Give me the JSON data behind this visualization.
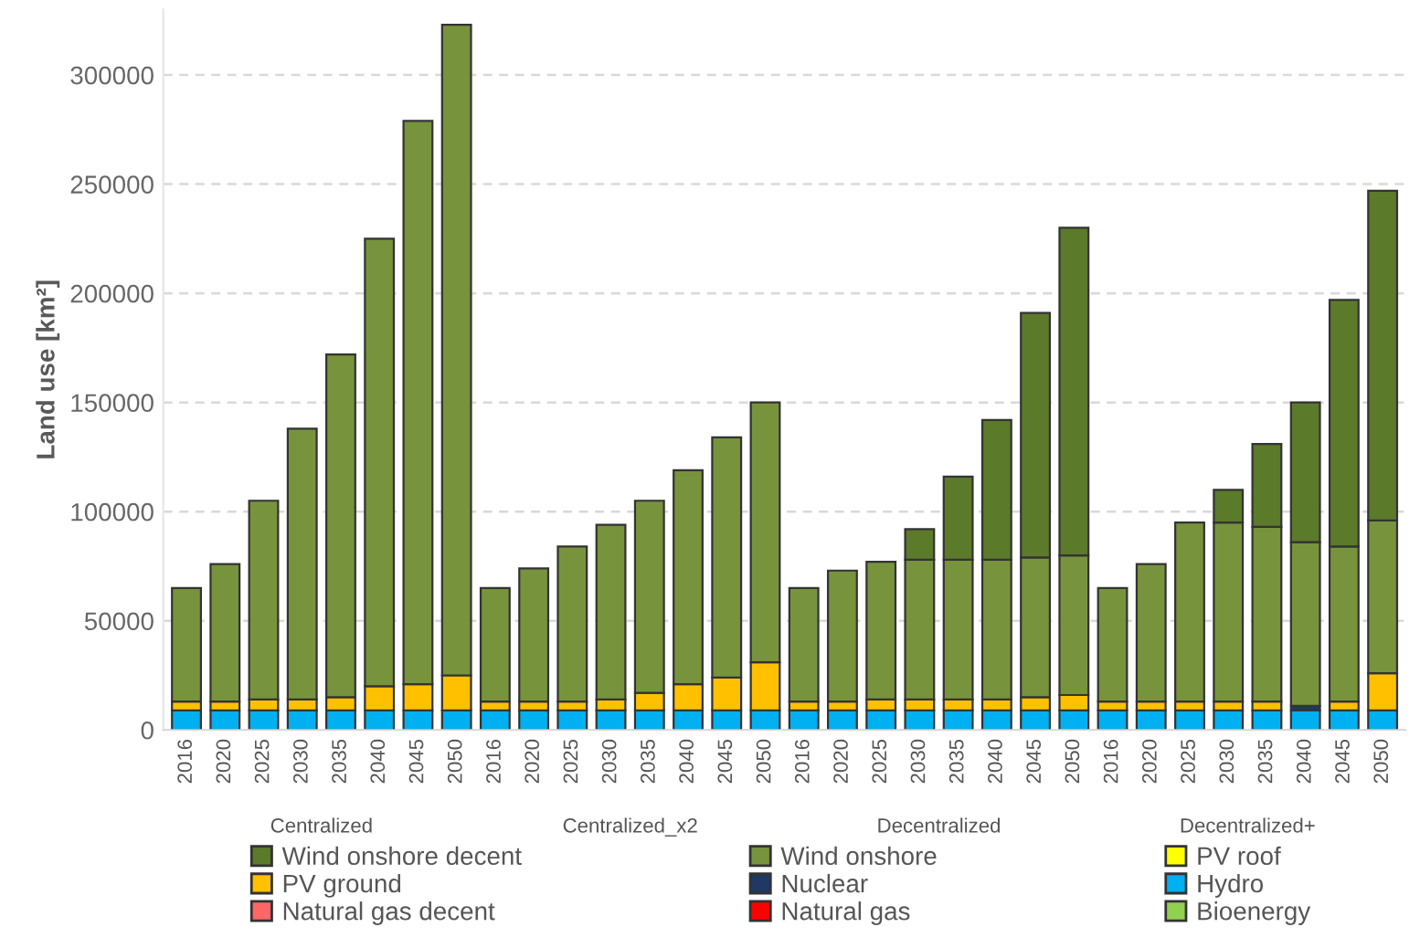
{
  "chart_data": {
    "type": "bar",
    "stacked": true,
    "ylabel": "Land use [km²]",
    "categories": [
      "2016",
      "2020",
      "2025",
      "2030",
      "2035",
      "2040",
      "2045",
      "2050",
      "2016",
      "2020",
      "2025",
      "2030",
      "2035",
      "2040",
      "2045",
      "2050",
      "2016",
      "2020",
      "2025",
      "2030",
      "2035",
      "2040",
      "2045",
      "2050",
      "2016",
      "2020",
      "2025",
      "2030",
      "2035",
      "2040",
      "2045",
      "2050"
    ],
    "annotations": [
      "Centralized",
      "Centralized_x2",
      "Decentralized",
      "Decentralized+"
    ],
    "ylim": [
      0,
      330000
    ],
    "yticks": [
      0,
      50000,
      100000,
      150000,
      200000,
      250000,
      300000
    ],
    "grid": "y",
    "legend": "bottom",
    "series": [
      {
        "name": "Bioenergy",
        "color": "#92d050",
        "values": [
          0,
          0,
          0,
          0,
          0,
          0,
          0,
          0,
          0,
          0,
          0,
          0,
          0,
          0,
          0,
          0,
          0,
          0,
          0,
          0,
          0,
          0,
          0,
          0,
          0,
          0,
          0,
          0,
          0,
          0,
          0,
          0
        ]
      },
      {
        "name": "Natural gas",
        "color": "#ff0000",
        "values": [
          0,
          0,
          0,
          0,
          0,
          0,
          0,
          0,
          0,
          0,
          0,
          0,
          0,
          0,
          0,
          0,
          0,
          0,
          0,
          0,
          0,
          0,
          0,
          0,
          0,
          0,
          0,
          0,
          0,
          0,
          0,
          0
        ]
      },
      {
        "name": "Natural gas decent",
        "color": "#ff6666",
        "values": [
          0,
          0,
          0,
          0,
          0,
          0,
          0,
          0,
          0,
          0,
          0,
          0,
          0,
          0,
          0,
          0,
          0,
          0,
          0,
          0,
          0,
          0,
          0,
          0,
          0,
          0,
          0,
          0,
          0,
          0,
          0,
          0
        ]
      },
      {
        "name": "Hydro",
        "color": "#00b0f0",
        "values": [
          9000,
          9000,
          9000,
          9000,
          9000,
          9000,
          9000,
          9000,
          9000,
          9000,
          9000,
          9000,
          9000,
          9000,
          9000,
          9000,
          9000,
          9000,
          9000,
          9000,
          9000,
          9000,
          9000,
          9000,
          9000,
          9000,
          9000,
          9000,
          9000,
          9000,
          9000,
          9000
        ]
      },
      {
        "name": "Nuclear",
        "color": "#1f3864",
        "values": [
          0,
          0,
          0,
          0,
          0,
          0,
          0,
          0,
          0,
          0,
          0,
          0,
          0,
          0,
          0,
          0,
          0,
          0,
          0,
          0,
          0,
          0,
          0,
          0,
          0,
          0,
          0,
          0,
          0,
          2000,
          0,
          0
        ]
      },
      {
        "name": "PV ground",
        "color": "#ffc000",
        "values": [
          4000,
          4000,
          5000,
          5000,
          6000,
          11000,
          12000,
          16000,
          4000,
          4000,
          4000,
          5000,
          8000,
          12000,
          15000,
          22000,
          4000,
          4000,
          5000,
          5000,
          5000,
          5000,
          6000,
          7000,
          4000,
          4000,
          4000,
          4000,
          4000,
          null,
          4000,
          17000
        ]
      },
      {
        "name": "PV roof",
        "color": "#ffff00",
        "values": [
          0,
          0,
          0,
          0,
          0,
          0,
          0,
          0,
          0,
          0,
          0,
          0,
          0,
          0,
          0,
          0,
          0,
          0,
          0,
          0,
          0,
          0,
          0,
          0,
          0,
          0,
          0,
          0,
          0,
          0,
          0,
          0
        ]
      },
      {
        "name": "Wind onshore",
        "color": "#77933c",
        "values": [
          52000,
          63000,
          91000,
          124000,
          157000,
          205000,
          258000,
          298000,
          52000,
          61000,
          71000,
          80000,
          88000,
          98000,
          110000,
          119000,
          52000,
          60000,
          63000,
          64000,
          64000,
          64000,
          64000,
          64000,
          52000,
          63000,
          82000,
          82000,
          80000,
          75000,
          71000,
          70000
        ]
      },
      {
        "name": "Wind onshore decent",
        "color": "#5b7a2a",
        "values": [
          0,
          0,
          0,
          0,
          0,
          0,
          0,
          0,
          0,
          0,
          0,
          0,
          0,
          0,
          0,
          0,
          0,
          0,
          0,
          14000,
          38000,
          64000,
          112000,
          150000,
          0,
          0,
          0,
          15000,
          38000,
          64000,
          113000,
          151000
        ]
      }
    ]
  }
}
